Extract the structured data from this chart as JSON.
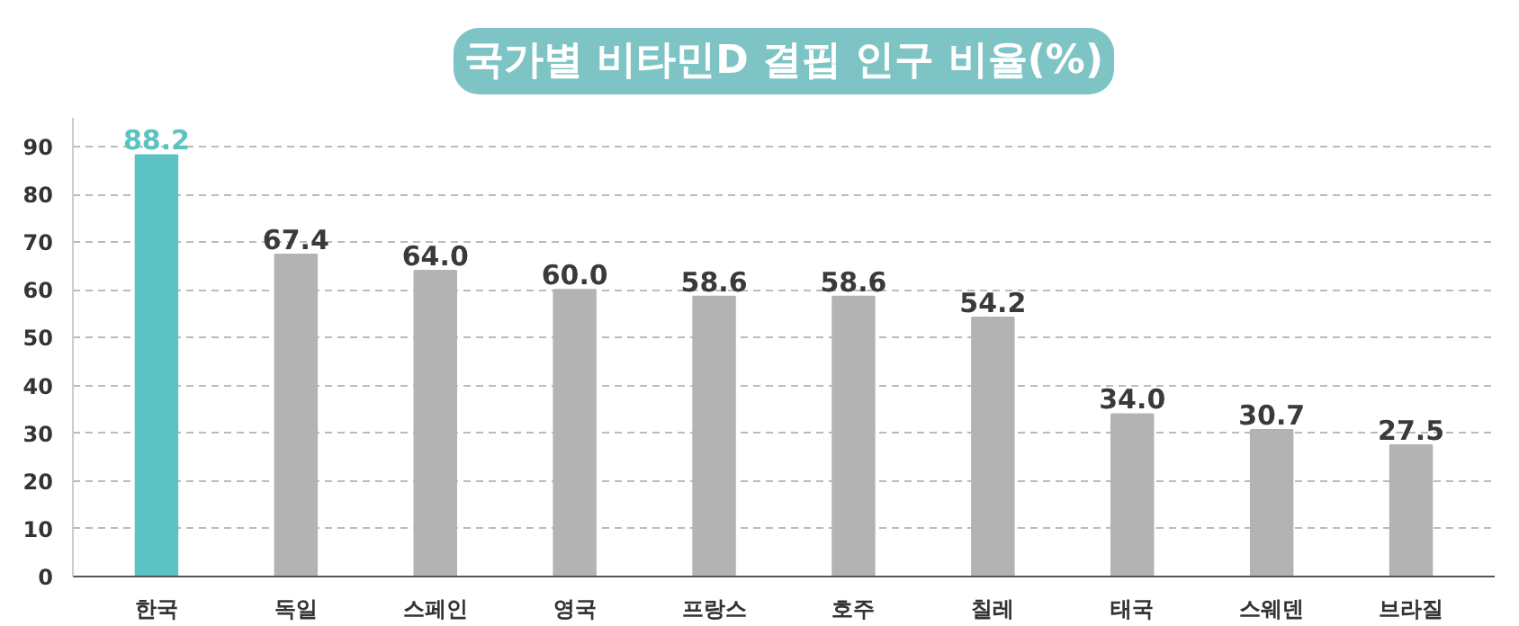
{
  "chart_data": {
    "type": "bar",
    "title": "국가별 비타민D 결핍 인구 비율(%)",
    "categories": [
      "한국",
      "독일",
      "스페인",
      "영국",
      "프랑스",
      "호주",
      "칠레",
      "태국",
      "스웨덴",
      "브라질"
    ],
    "values": [
      88.2,
      67.4,
      64.0,
      60.0,
      58.6,
      58.6,
      54.2,
      34.0,
      30.7,
      27.5
    ],
    "colors": [
      "#5cc2c2",
      "#b3b3b3",
      "#b3b3b3",
      "#b3b3b3",
      "#b3b3b3",
      "#b3b3b3",
      "#b3b3b3",
      "#b3b3b3",
      "#b3b3b3",
      "#b3b3b3"
    ],
    "value_labels": [
      "88.2",
      "67.4",
      "64.0",
      "60.0",
      "58.6",
      "58.6",
      "54.2",
      "34.0",
      "30.7",
      "27.5"
    ],
    "ylim": [
      0,
      96
    ],
    "yticks": [
      0,
      10,
      20,
      30,
      40,
      50,
      60,
      70,
      80,
      90
    ],
    "grid": "y"
  }
}
